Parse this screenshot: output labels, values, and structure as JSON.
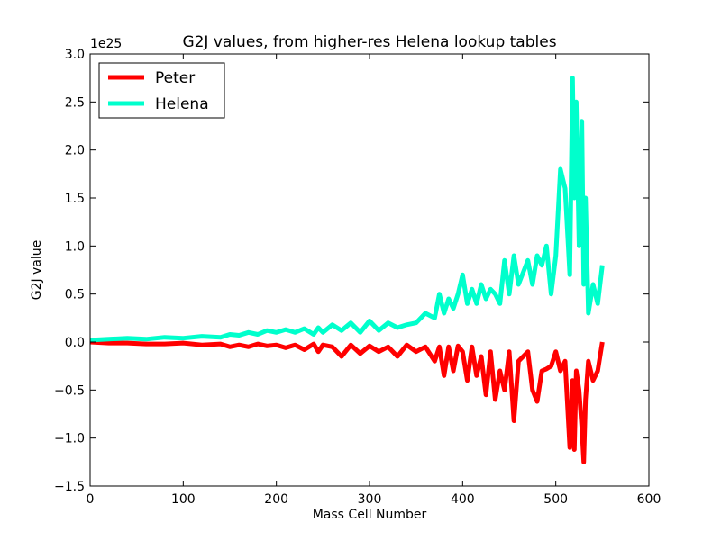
{
  "chart_data": {
    "type": "line",
    "title": "G2J values, from higher-res Helena lookup tables",
    "xlabel": "Mass Cell Number",
    "ylabel": "G2J value",
    "y_offset_label": "1e25",
    "xlim": [
      0,
      600
    ],
    "ylim": [
      -1.5,
      3.0
    ],
    "x_ticks": [
      0,
      100,
      200,
      300,
      400,
      500,
      600
    ],
    "y_ticks": [
      -1.5,
      -1.0,
      -0.5,
      0.0,
      0.5,
      1.0,
      1.5,
      2.0,
      2.5,
      3.0
    ],
    "x_tick_labels": [
      "0",
      "100",
      "200",
      "300",
      "400",
      "500",
      "600"
    ],
    "y_tick_labels": [
      "−1.5",
      "−1.0",
      "−0.5",
      "0.0",
      "0.5",
      "1.0",
      "1.5",
      "2.0",
      "2.5",
      "3.0"
    ],
    "grid": false,
    "legend_position": "top-left",
    "series": [
      {
        "name": "Peter",
        "color": "#ff0000",
        "x": [
          0,
          20,
          40,
          60,
          80,
          100,
          120,
          140,
          150,
          160,
          170,
          180,
          190,
          200,
          210,
          220,
          230,
          240,
          245,
          250,
          260,
          270,
          280,
          290,
          300,
          310,
          320,
          330,
          340,
          350,
          360,
          370,
          375,
          380,
          385,
          390,
          395,
          400,
          405,
          410,
          415,
          420,
          425,
          430,
          435,
          440,
          445,
          450,
          455,
          460,
          470,
          475,
          480,
          485,
          490,
          495,
          500,
          505,
          510,
          515,
          518,
          520,
          522,
          525,
          528,
          530,
          532,
          535,
          540,
          545,
          550
        ],
        "values": [
          0,
          -0.01,
          -0.01,
          -0.02,
          -0.02,
          -0.01,
          -0.03,
          -0.02,
          -0.05,
          -0.03,
          -0.05,
          -0.02,
          -0.04,
          -0.03,
          -0.06,
          -0.03,
          -0.08,
          -0.02,
          -0.1,
          -0.03,
          -0.05,
          -0.15,
          -0.03,
          -0.12,
          -0.04,
          -0.1,
          -0.05,
          -0.15,
          -0.03,
          -0.1,
          -0.05,
          -0.2,
          -0.05,
          -0.35,
          -0.05,
          -0.3,
          -0.04,
          -0.1,
          -0.4,
          -0.05,
          -0.35,
          -0.15,
          -0.55,
          -0.1,
          -0.6,
          -0.3,
          -0.5,
          -0.1,
          -0.82,
          -0.2,
          -0.1,
          -0.5,
          -0.62,
          -0.3,
          -0.28,
          -0.25,
          -0.1,
          -0.3,
          -0.2,
          -1.1,
          -0.4,
          -1.12,
          -0.3,
          -0.5,
          -0.9,
          -1.25,
          -0.6,
          -0.2,
          -0.4,
          -0.3,
          0.0
        ]
      },
      {
        "name": "Helena",
        "color": "#00ffcc",
        "x": [
          0,
          20,
          40,
          60,
          80,
          100,
          120,
          140,
          150,
          160,
          170,
          180,
          190,
          200,
          210,
          220,
          230,
          240,
          245,
          250,
          260,
          270,
          280,
          290,
          300,
          310,
          320,
          330,
          340,
          350,
          360,
          370,
          375,
          380,
          385,
          390,
          395,
          400,
          405,
          410,
          415,
          420,
          425,
          430,
          435,
          440,
          445,
          450,
          455,
          460,
          470,
          475,
          480,
          485,
          490,
          495,
          500,
          505,
          510,
          515,
          518,
          520,
          522,
          525,
          528,
          530,
          532,
          535,
          540,
          545,
          550
        ],
        "values": [
          0.02,
          0.03,
          0.04,
          0.03,
          0.05,
          0.04,
          0.06,
          0.05,
          0.08,
          0.07,
          0.1,
          0.08,
          0.12,
          0.1,
          0.13,
          0.1,
          0.14,
          0.08,
          0.15,
          0.1,
          0.18,
          0.12,
          0.2,
          0.1,
          0.22,
          0.12,
          0.2,
          0.15,
          0.18,
          0.2,
          0.3,
          0.25,
          0.5,
          0.3,
          0.45,
          0.35,
          0.5,
          0.7,
          0.4,
          0.55,
          0.4,
          0.6,
          0.45,
          0.55,
          0.5,
          0.4,
          0.85,
          0.5,
          0.9,
          0.6,
          0.85,
          0.6,
          0.9,
          0.8,
          1.0,
          0.5,
          0.9,
          1.8,
          1.6,
          0.7,
          2.75,
          1.5,
          2.5,
          1.0,
          2.3,
          0.6,
          1.5,
          0.3,
          0.6,
          0.4,
          0.8
        ]
      }
    ]
  }
}
